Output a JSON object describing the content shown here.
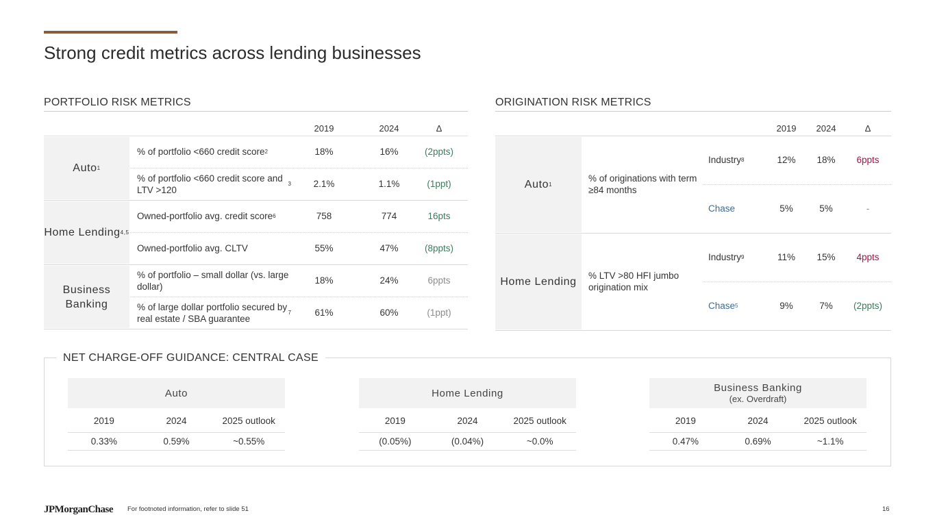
{
  "title": "Strong credit metrics across lending businesses",
  "portfolio": {
    "heading": "PORTFOLIO RISK METRICS",
    "cols": [
      "2019",
      "2024",
      "∆"
    ],
    "groups": [
      {
        "label": "Auto",
        "sup": "1",
        "rows": [
          {
            "metric": "% of portfolio <660 credit score",
            "sup": "2",
            "v2019": "18%",
            "v2024": "16%",
            "delta": "(2ppts)",
            "delta_color": "green"
          },
          {
            "metric": "% of portfolio <660 credit score and LTV >120",
            "sup": "3",
            "v2019": "2.1%",
            "v2024": "1.1%",
            "delta": "(1ppt)",
            "delta_color": "green"
          }
        ]
      },
      {
        "label": "Home Lending",
        "sup": "4,5",
        "rows": [
          {
            "metric": "Owned-portfolio avg. credit score",
            "sup": "6",
            "v2019": "758",
            "v2024": "774",
            "delta": "16pts",
            "delta_color": "green"
          },
          {
            "metric": "Owned-portfolio avg. CLTV",
            "sup": "",
            "v2019": "55%",
            "v2024": "47%",
            "delta": "(8ppts)",
            "delta_color": "green"
          }
        ]
      },
      {
        "label": "Business Banking",
        "sup": "",
        "rows": [
          {
            "metric": "% of portfolio – small dollar (vs. large dollar)",
            "sup": "",
            "v2019": "18%",
            "v2024": "24%",
            "delta": "6ppts",
            "delta_color": "gray"
          },
          {
            "metric": "% of large dollar portfolio secured by real estate / SBA guarantee",
            "sup": "7",
            "v2019": "61%",
            "v2024": "60%",
            "delta": "(1ppt)",
            "delta_color": "gray"
          }
        ]
      }
    ]
  },
  "origination": {
    "heading": "ORIGINATION RISK METRICS",
    "cols": [
      "2019",
      "2024",
      "∆"
    ],
    "groups": [
      {
        "label": "Auto",
        "sup": "1",
        "metric": "% of originations with term ≥84 months",
        "rows": [
          {
            "sub": "Industry",
            "sup": "8",
            "v2019": "12%",
            "v2024": "18%",
            "delta": "6ppts",
            "delta_color": "red"
          },
          {
            "sub": "Chase",
            "sup": "",
            "v2019": "5%",
            "v2024": "5%",
            "delta": "-",
            "delta_color": "gray"
          }
        ]
      },
      {
        "label": "Home Lending",
        "sup": "",
        "metric": "% LTV >80 HFI jumbo origination mix",
        "rows": [
          {
            "sub": "Industry",
            "sup": "9",
            "v2019": "11%",
            "v2024": "15%",
            "delta": "4ppts",
            "delta_color": "red"
          },
          {
            "sub": "Chase",
            "sup": "5",
            "v2019": "9%",
            "v2024": "7%",
            "delta": "(2ppts)",
            "delta_color": "green"
          }
        ]
      }
    ]
  },
  "nco": {
    "heading": "NET CHARGE-OFF GUIDANCE: CENTRAL CASE",
    "tables": [
      {
        "title": "Auto",
        "subtitle": "",
        "cols": [
          "2019",
          "2024",
          "2025 outlook"
        ],
        "values": [
          "0.33%",
          "0.59%",
          "~0.55%"
        ]
      },
      {
        "title": "Home Lending",
        "subtitle": "",
        "cols": [
          "2019",
          "2024",
          "2025 outlook"
        ],
        "values": [
          "(0.05%)",
          "(0.04%)",
          "~0.0%"
        ]
      },
      {
        "title": "Business Banking",
        "subtitle": "(ex. Overdraft)",
        "cols": [
          "2019",
          "2024",
          "2025 outlook"
        ],
        "values": [
          "0.47%",
          "0.69%",
          "~1.1%"
        ]
      }
    ]
  },
  "colors": {
    "green": "#3d7a5c",
    "red": "#a3134a",
    "blue": "#3d6b94",
    "gray": "#8c8c8c",
    "accent": "#8b5a3c"
  },
  "footer": {
    "logo": "JPMorganChase",
    "note": "For footnoted information, refer to slide 51",
    "page": "16"
  }
}
